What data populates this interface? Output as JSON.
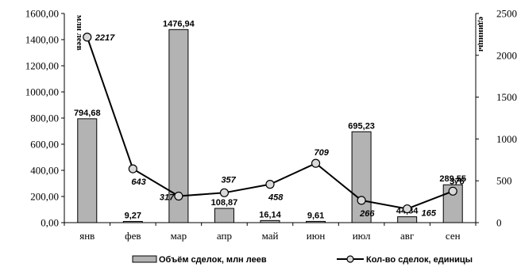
{
  "chart_data": {
    "type": "bar+line",
    "categories": [
      "янв",
      "фев",
      "мар",
      "апр",
      "май",
      "июн",
      "июл",
      "авг",
      "сен"
    ],
    "series": [
      {
        "name": "Объём сделок, млн леев",
        "type": "bar",
        "axis": "left",
        "values": [
          794.68,
          9.27,
          1476.94,
          108.87,
          16.14,
          9.61,
          695.23,
          44.84,
          289.55
        ],
        "labels": [
          "794,68",
          "9,27",
          "1476,94",
          "108,87",
          "16,14",
          "9,61",
          "695,23",
          "44,84",
          "289,55"
        ],
        "color": "#b3b3b3"
      },
      {
        "name": "Кол-во сделок, единицы",
        "type": "line",
        "axis": "right",
        "values": [
          2217,
          643,
          317,
          357,
          458,
          709,
          266,
          165,
          376
        ],
        "labels": [
          "2217",
          "643",
          "317",
          "357",
          "458",
          "709",
          "266",
          "165",
          "376"
        ],
        "color": "#000000"
      }
    ],
    "y_left": {
      "label": "млн леев",
      "range": [
        0,
        1600
      ],
      "ticks": [
        "0,00",
        "200,00",
        "400,00",
        "600,00",
        "800,00",
        "1000,00",
        "1200,00",
        "1400,00",
        "1600,00"
      ]
    },
    "y_right": {
      "label": "единицы",
      "range": [
        0,
        2500
      ],
      "ticks": [
        "0",
        "500",
        "1000",
        "1500",
        "2000",
        "2500"
      ]
    },
    "grid": false,
    "legend": "bottom"
  }
}
